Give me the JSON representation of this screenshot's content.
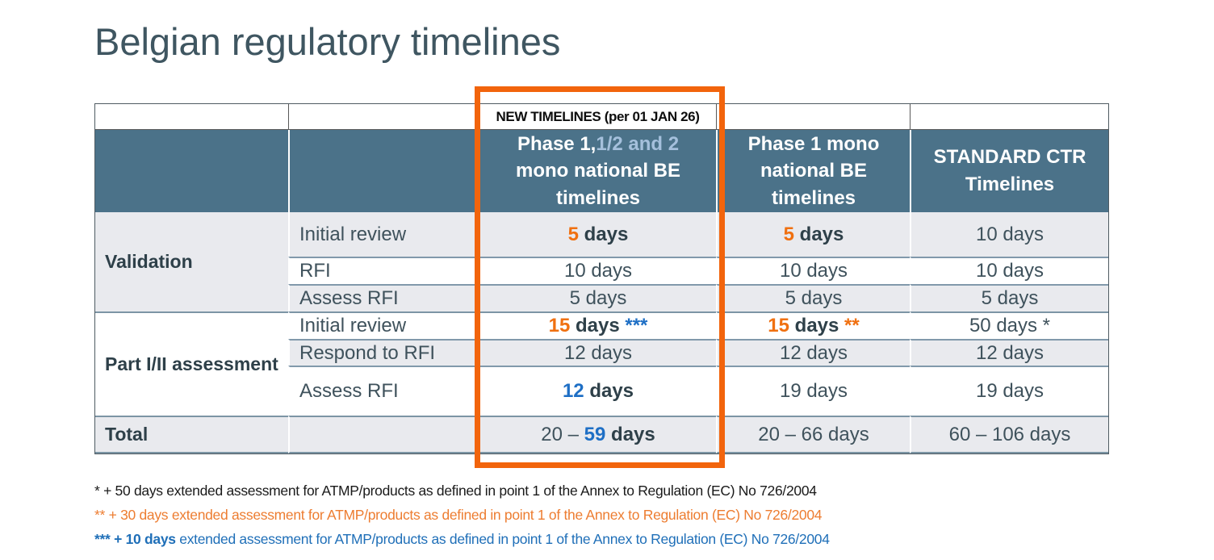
{
  "title": "Belgian regulatory timelines",
  "colors": {
    "header_background": "#4B7289",
    "header_text": "#FFFFFF",
    "header_lightblue_text": "#A5C0DC",
    "highlight_box": "#F2640C",
    "accent_orange": "#F07010",
    "accent_blue": "#1E6FC5",
    "dark_text": "#2E4049",
    "body_text": "#3F525C",
    "shaded_row": "#E9EAEE",
    "footnote_orange": "#ED7D31",
    "footnote_blue": "#1F6FB8"
  },
  "table": {
    "banner": "NEW TIMELINES (per 01 JAN 26)",
    "column_headers": [
      {
        "key": "group"
      },
      {
        "key": "step"
      },
      {
        "key": "phase-1-12-2-mono-national-be",
        "segments": [
          {
            "t": "Phase 1,"
          },
          {
            "t": "1/2 and 2",
            "c": "lightblue"
          },
          {
            "t": " mono national BE timelines"
          }
        ]
      },
      {
        "key": "phase-1-mono-national-be",
        "segments": [
          {
            "t": "Phase 1 mono national BE timelines"
          }
        ]
      },
      {
        "key": "standard-ctr",
        "segments": [
          {
            "t": "STANDARD CTR Timelines"
          }
        ]
      }
    ],
    "rows": [
      {
        "group": {
          "label": "Validation",
          "rowspan": 3,
          "shade": true
        },
        "step": "Initial review",
        "shade": true,
        "sep": "none",
        "values": [
          [
            {
              "t": "5",
              "c": "orange",
              "b": 1
            },
            {
              "t": " days",
              "c": "dark",
              "b": 1
            }
          ],
          [
            {
              "t": "5",
              "c": "orange",
              "b": 1
            },
            {
              "t": " days",
              "c": "dark",
              "b": 1
            }
          ],
          [
            {
              "t": "10 days"
            }
          ]
        ]
      },
      {
        "step": "RFI",
        "shade": false,
        "sep": "inner",
        "values": [
          [
            {
              "t": "10 days"
            }
          ],
          [
            {
              "t": "10 days"
            }
          ],
          [
            {
              "t": "10 days"
            }
          ]
        ]
      },
      {
        "step": "Assess RFI",
        "shade": true,
        "sep": "inner",
        "values": [
          [
            {
              "t": "5 days"
            }
          ],
          [
            {
              "t": "5 days"
            }
          ],
          [
            {
              "t": "5 days"
            }
          ]
        ]
      },
      {
        "group": {
          "label": "Part I/II assessment",
          "rowspan": 3,
          "shade": false
        },
        "step": "Initial review",
        "shade": false,
        "sep": "group",
        "values": [
          [
            {
              "t": "15",
              "c": "orange",
              "b": 1
            },
            {
              "t": " days ",
              "c": "dark",
              "b": 1
            },
            {
              "t": "***",
              "c": "blue",
              "b": 1
            }
          ],
          [
            {
              "t": "15",
              "c": "orange",
              "b": 1
            },
            {
              "t": " days ",
              "c": "dark",
              "b": 1
            },
            {
              "t": "**",
              "c": "orange",
              "b": 1
            }
          ],
          [
            {
              "t": "50 days *"
            }
          ]
        ]
      },
      {
        "step": "Respond to RFI",
        "shade": true,
        "sep": "inner",
        "values": [
          [
            {
              "t": "12 days"
            }
          ],
          [
            {
              "t": "12 days"
            }
          ],
          [
            {
              "t": "12 days"
            }
          ]
        ]
      },
      {
        "step": "Assess RFI",
        "shade": false,
        "sep": "inner",
        "values": [
          [
            {
              "t": "12",
              "c": "blue",
              "b": 1
            },
            {
              "t": " days",
              "c": "dark",
              "b": 1
            }
          ],
          [
            {
              "t": "19 days"
            }
          ],
          [
            {
              "t": "19 days"
            }
          ]
        ]
      }
    ],
    "total": {
      "label": "Total",
      "values": [
        [
          {
            "t": "20 – "
          },
          {
            "t": "59",
            "c": "blue",
            "b": 1
          },
          {
            "t": " days",
            "c": "dark",
            "b": 1
          }
        ],
        [
          {
            "t": "20 – 66 days"
          }
        ],
        [
          {
            "t": "60 – 106 days"
          }
        ]
      ]
    }
  },
  "footnotes": [
    {
      "color": "#1A1A1A",
      "segments": [
        {
          "t": "* + 50 days extended assessment for ATMP/products as defined in point 1 of the Annex to Regulation (EC) No 726/2004"
        }
      ]
    },
    {
      "color": "#ED7D31",
      "segments": [
        {
          "t": "** + 30 days extended assessment for ATMP/products as defined in point 1 of the Annex to Regulation (EC) No 726/2004"
        }
      ]
    },
    {
      "color": "#1F6FB8",
      "segments": [
        {
          "t": "*** + 10 days",
          "b": 1
        },
        {
          "t": " extended assessment for ATMP/products as defined in point 1 of the Annex to Regulation (EC) No 726/2004"
        }
      ]
    }
  ]
}
